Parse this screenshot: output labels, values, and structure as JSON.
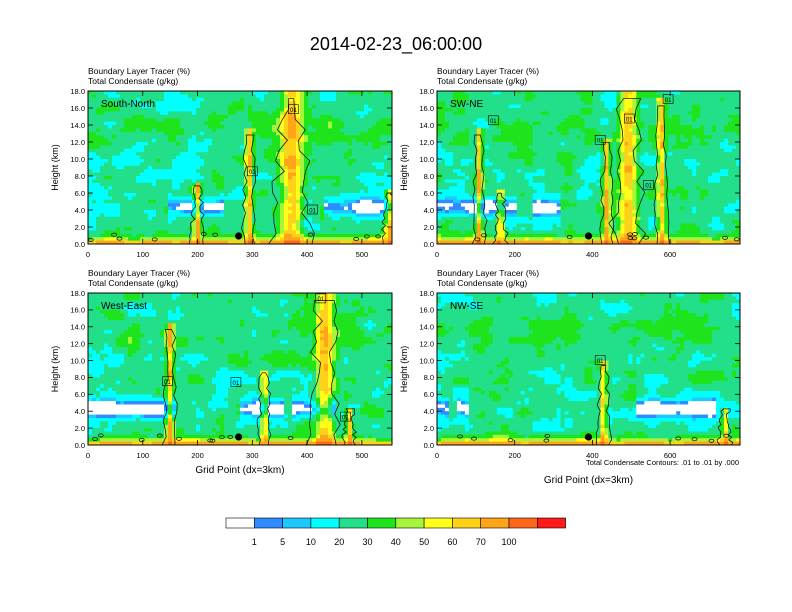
{
  "title": "2014-02-23_06:00:00",
  "colors": {
    "bins": [
      "#ffffff",
      "#2f8bff",
      "#1ec8ff",
      "#00ffff",
      "#22e08a",
      "#1ee41e",
      "#a7f53a",
      "#ffff1a",
      "#ffd21a",
      "#ffa51a",
      "#ff661a",
      "#ff1a1a"
    ],
    "contour": "#000000",
    "marker": "#000000"
  },
  "colorbar": {
    "labels": [
      "1",
      "5",
      "10",
      "20",
      "30",
      "40",
      "50",
      "60",
      "70",
      "100"
    ]
  },
  "contour_note": "Total Condensate Contours: .01 to .01 by .000",
  "xaxis_title": "Grid Point (dx=3km)",
  "chart_data": [
    {
      "type": "heatmap",
      "label": "South-North",
      "subtitle_1": "Boundary Layer Tracer   (%)",
      "subtitle_2": "Total Condensate   (g/kg)",
      "ylabel": "Height (km)",
      "xlabel": "",
      "xlim": [
        0,
        555
      ],
      "ylim": [
        0,
        18
      ],
      "xticks": [
        0,
        100,
        200,
        300,
        400,
        500
      ],
      "yticks": [
        0,
        2,
        4,
        6,
        8,
        10,
        12,
        14,
        16,
        18
      ],
      "ytick_labels": [
        "0.0",
        "2.0",
        "4.0",
        "6.0",
        "8.0",
        "10.0",
        "12.0",
        "14.0",
        "16.0",
        "18.0"
      ],
      "marker_x": 275,
      "contour_labels": [
        {
          "text": "01",
          "x": 300,
          "y": 8.5
        },
        {
          "text": "01",
          "x": 375,
          "y": 15.8
        },
        {
          "text": "01",
          "x": 410,
          "y": 4.0
        }
      ]
    },
    {
      "type": "heatmap",
      "label": "SW-NE",
      "subtitle_1": "Boundary Layer Tracer   (%)",
      "subtitle_2": "Total Condensate   (g/kg)",
      "ylabel": "Height (km)",
      "xlabel": "",
      "xlim": [
        0,
        780
      ],
      "ylim": [
        0,
        18
      ],
      "xticks": [
        0,
        200,
        400,
        600
      ],
      "yticks": [
        0,
        2,
        4,
        6,
        8,
        10,
        12,
        14,
        16,
        18
      ],
      "ytick_labels": [
        "0.0",
        "2.0",
        "4.0",
        "6.0",
        "8.0",
        "10.0",
        "12.0",
        "14.0",
        "16.0",
        "18.0"
      ],
      "marker_x": 390,
      "contour_labels": [
        {
          "text": "01",
          "x": 145,
          "y": 14.5
        },
        {
          "text": "01",
          "x": 420,
          "y": 12.2
        },
        {
          "text": "01",
          "x": 495,
          "y": 14.7
        },
        {
          "text": "01",
          "x": 545,
          "y": 6.9
        },
        {
          "text": "01",
          "x": 595,
          "y": 17.0
        }
      ]
    },
    {
      "type": "heatmap",
      "label": "West-East",
      "subtitle_1": "Boundary Layer Tracer   (%)",
      "subtitle_2": "Total Condensate   (g/kg)",
      "ylabel": "Height (km)",
      "xlabel": "Grid Point (dx=3km)",
      "xlim": [
        0,
        555
      ],
      "ylim": [
        0,
        18
      ],
      "xticks": [
        0,
        100,
        200,
        300,
        400,
        500
      ],
      "yticks": [
        0,
        2,
        4,
        6,
        8,
        10,
        12,
        14,
        16,
        18
      ],
      "ytick_labels": [
        "0.0",
        "2.0",
        "4.0",
        "6.0",
        "8.0",
        "10.0",
        "12.0",
        "14.0",
        "16.0",
        "18.0"
      ],
      "marker_x": 275,
      "contour_labels": [
        {
          "text": "01",
          "x": 145,
          "y": 7.5
        },
        {
          "text": "01",
          "x": 270,
          "y": 7.4
        },
        {
          "text": "01",
          "x": 425,
          "y": 17.3
        },
        {
          "text": "01",
          "x": 470,
          "y": 3.3
        }
      ]
    },
    {
      "type": "heatmap",
      "label": "NW-SE",
      "subtitle_1": "Boundary Layer Tracer   (%)",
      "subtitle_2": "Total Condensate   (g/kg)",
      "ylabel": "Height (km)",
      "xlabel": "Grid Point (dx=3km)",
      "xlim": [
        0,
        780
      ],
      "ylim": [
        0,
        18
      ],
      "xticks": [
        0,
        200,
        400,
        600
      ],
      "yticks": [
        0,
        2,
        4,
        6,
        8,
        10,
        12,
        14,
        16,
        18
      ],
      "ytick_labels": [
        "0.0",
        "2.0",
        "4.0",
        "6.0",
        "8.0",
        "10.0",
        "12.0",
        "14.0",
        "16.0",
        "18.0"
      ],
      "marker_x": 390,
      "contour_labels": [
        {
          "text": "01",
          "x": 420,
          "y": 10.0
        }
      ]
    }
  ]
}
